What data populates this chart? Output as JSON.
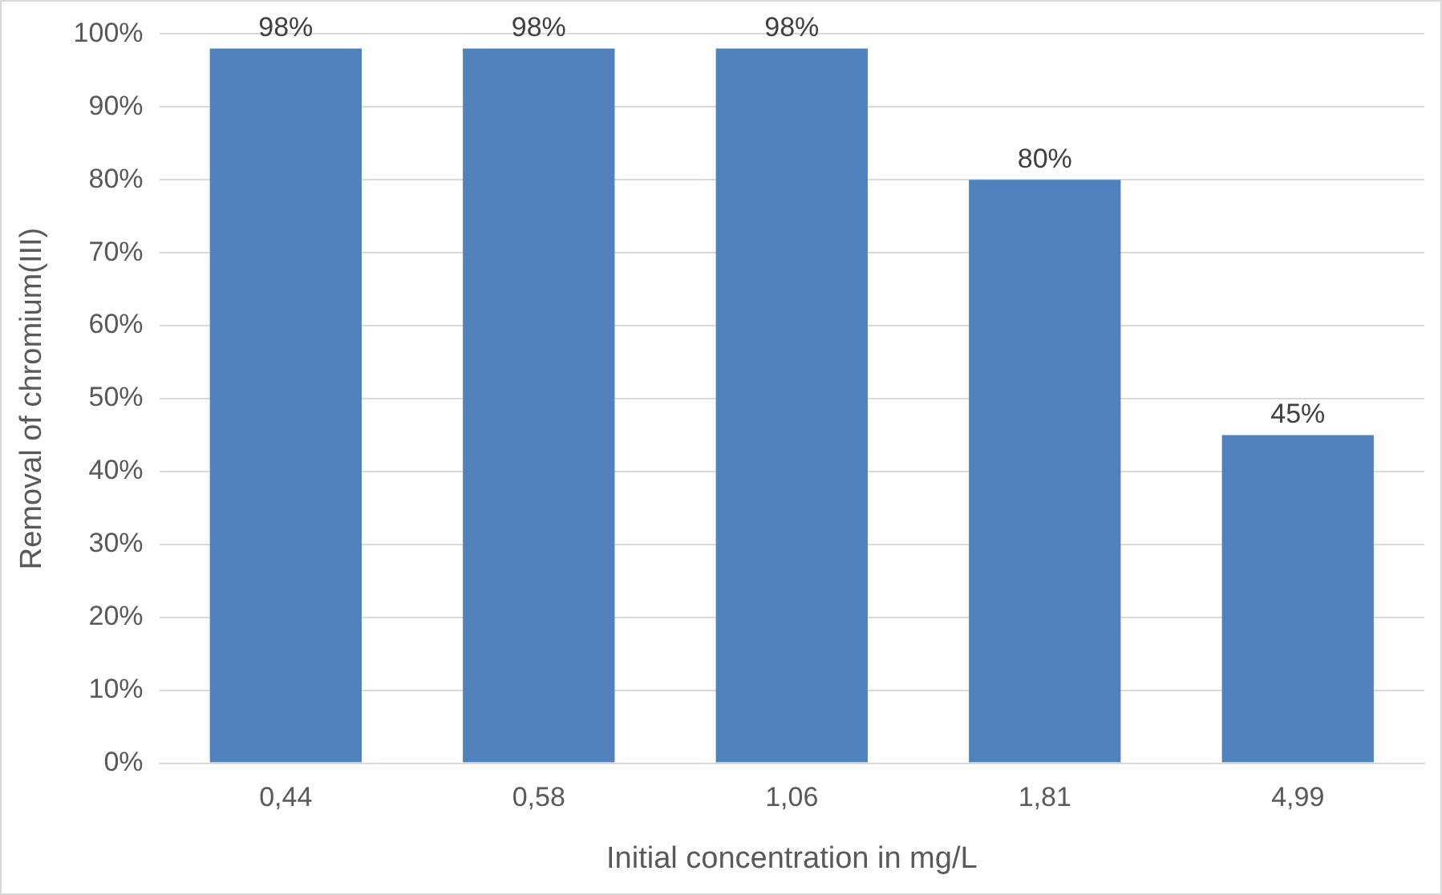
{
  "chart_data": {
    "type": "bar",
    "xlabel": "Initial concentration in mg/L",
    "ylabel": "Removal of chromium(III)",
    "categories": [
      "0,44",
      "0,58",
      "1,06",
      "1,81",
      "4,99"
    ],
    "values": [
      98,
      98,
      98,
      80,
      45
    ],
    "value_labels": [
      "98%",
      "98%",
      "98%",
      "80%",
      "45%"
    ],
    "color": "#4f81bd",
    "ylim": [
      0,
      100
    ],
    "yticks": [
      {
        "value": 0,
        "label": "0%"
      },
      {
        "value": 10,
        "label": "10%"
      },
      {
        "value": 20,
        "label": "20%"
      },
      {
        "value": 30,
        "label": "30%"
      },
      {
        "value": 40,
        "label": "40%"
      },
      {
        "value": 50,
        "label": "50%"
      },
      {
        "value": 60,
        "label": "60%"
      },
      {
        "value": 70,
        "label": "70%"
      },
      {
        "value": 80,
        "label": "80%"
      },
      {
        "value": 90,
        "label": "90%"
      },
      {
        "value": 100,
        "label": "100%"
      }
    ],
    "grid": "y"
  }
}
